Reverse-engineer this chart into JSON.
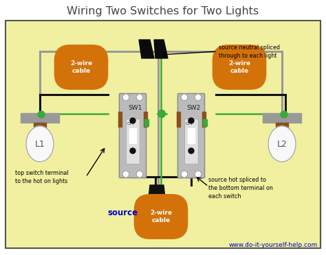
{
  "title": "Wiring Two Switches for Two Lights",
  "bg_color": "#f0f0a0",
  "border_color": "#555555",
  "white_bg": "#ffffff",
  "title_color": "#444444",
  "url_text": "www.do-it-yourself-help.com",
  "url_color": "#0000cc",
  "source_text": "source",
  "source_color": "#0000cc",
  "label_L1": "L1",
  "label_L2": "L2",
  "label_SW1": "SW1",
  "label_SW2": "SW2",
  "orange_label1": "2-wire\ncable",
  "orange_label2": "2-wire\ncable",
  "orange_label3": "2-wire\ncable",
  "orange_color": "#d4720a",
  "annotation1": "source neutral spliced\nthrough to each light",
  "annotation2": "top switch terminal\nto the hot on lights",
  "annotation3": "source hot spliced to\nthe bottom terminal on\neach switch",
  "wire_black": "#111111",
  "wire_green": "#3aaa3a",
  "wire_gray": "#999999",
  "switch_body_color": "#bbbbbb",
  "lamp_gray": "#999999",
  "lamp_bulb": "#f8f8f8",
  "brown_color": "#8B5020"
}
